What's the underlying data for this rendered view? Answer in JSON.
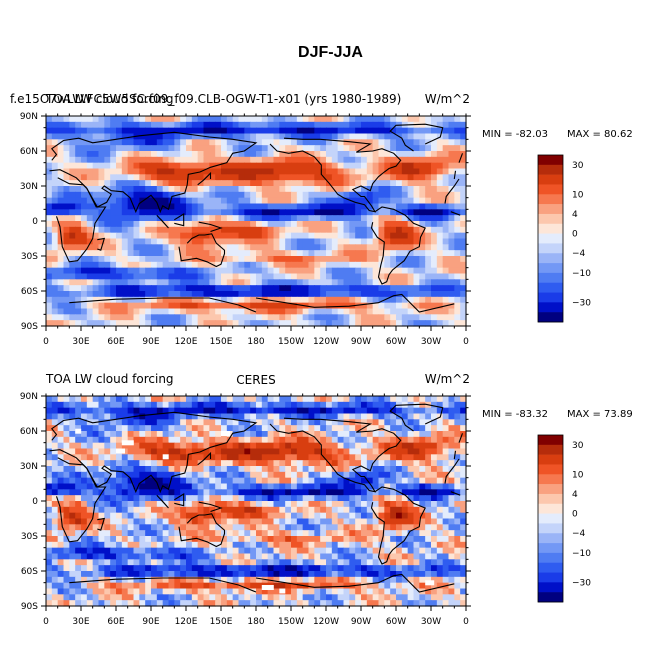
{
  "figure_title": "DJF-JJA",
  "chart_data": [
    {
      "type": "heatmap",
      "title_left": "f.e15O7wLW.FC5W5SC.f09_f09.CLB-OGW-T1-x01 (yrs 1980-1989)",
      "title_left_overprint": "TOA LW cloud forcing",
      "title_right": "W/m^2",
      "min_label": "MIN = -82.03",
      "max_label": "MAX =  80.62",
      "x_ticks": [
        "0",
        "30E",
        "60E",
        "90E",
        "120E",
        "150E",
        "180",
        "150W",
        "120W",
        "90W",
        "60W",
        "30W",
        "0"
      ],
      "y_ticks": [
        "90N",
        "60N",
        "30N",
        "0",
        "30S",
        "60S",
        "90S"
      ],
      "colorbar_labels": [
        "30",
        "10",
        "4",
        "0",
        "-4",
        "-10",
        "-30"
      ],
      "levels": [
        -40,
        -30,
        -20,
        -15,
        -10,
        -6,
        -4,
        -2,
        0,
        2,
        4,
        6,
        10,
        15,
        20,
        30,
        40
      ]
    },
    {
      "type": "heatmap",
      "title_left": "TOA LW cloud forcing",
      "title_center": "CERES",
      "title_right": "W/m^2",
      "min_label": "MIN = -83.32",
      "max_label": "MAX =  73.89",
      "x_ticks": [
        "0",
        "30E",
        "60E",
        "90E",
        "120E",
        "150E",
        "180",
        "150W",
        "120W",
        "90W",
        "60W",
        "30W",
        "0"
      ],
      "y_ticks": [
        "90N",
        "60N",
        "30N",
        "0",
        "30S",
        "60S",
        "90S"
      ],
      "colorbar_labels": [
        "30",
        "10",
        "4",
        "0",
        "-4",
        "-10",
        "-30"
      ],
      "levels": [
        -40,
        -30,
        -20,
        -15,
        -10,
        -6,
        -4,
        -2,
        0,
        2,
        4,
        6,
        10,
        15,
        20,
        30,
        40
      ]
    }
  ],
  "colors": [
    "#000080",
    "#0010c8",
    "#1a3ce8",
    "#2f5cf0",
    "#4f7cf2",
    "#7398f5",
    "#9ab4f7",
    "#c4d4fa",
    "#e4ecfc",
    "#fde6d8",
    "#fcc7ad",
    "#f9a180",
    "#f6784f",
    "#ef5426",
    "#d83e10",
    "#b52c0b",
    "#800000"
  ]
}
